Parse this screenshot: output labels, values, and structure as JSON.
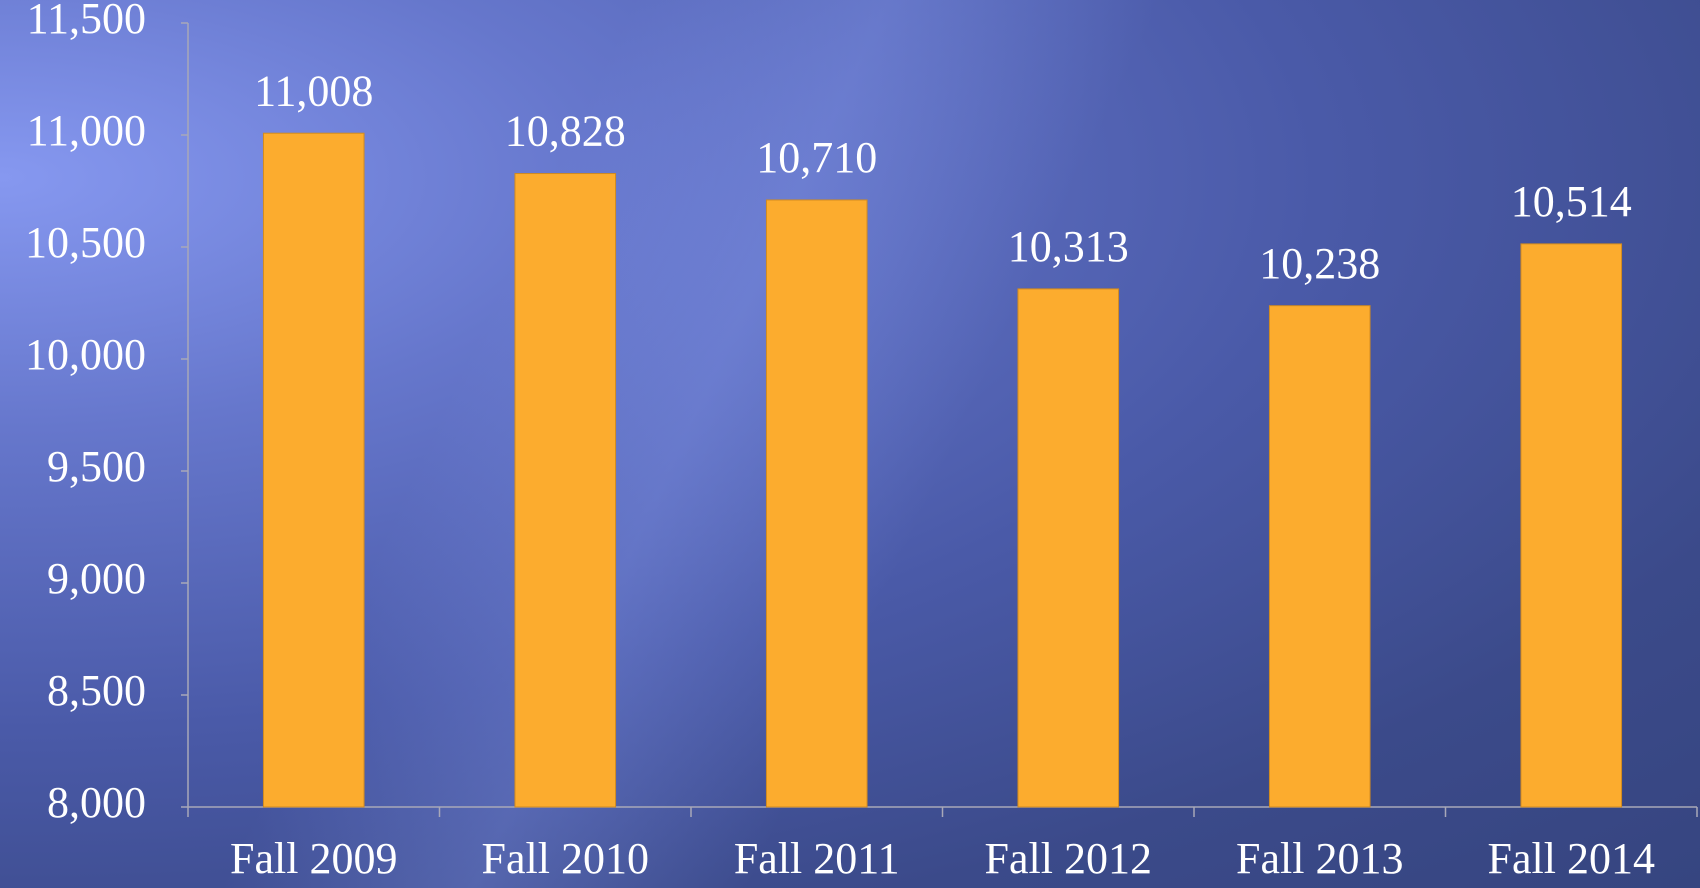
{
  "chart_data": {
    "type": "bar",
    "categories": [
      "Fall 2009",
      "Fall 2010",
      "Fall 2011",
      "Fall 2012",
      "Fall 2013",
      "Fall 2014"
    ],
    "values": [
      11008,
      10828,
      10710,
      10313,
      10238,
      10514
    ],
    "value_labels": [
      "11,008",
      "10,828",
      "10,710",
      "10,313",
      "10,238",
      "10,514"
    ],
    "color": "#fcac2e",
    "ylim": [
      8000,
      11500
    ],
    "yticks": [
      {
        "value": 8000,
        "label": "8,000"
      },
      {
        "value": 8500,
        "label": "8,500"
      },
      {
        "value": 9000,
        "label": "9,000"
      },
      {
        "value": 9500,
        "label": "9,500"
      },
      {
        "value": 10000,
        "label": "10,000"
      },
      {
        "value": 10500,
        "label": "10,500"
      },
      {
        "value": 11000,
        "label": "11,000"
      },
      {
        "value": 11500,
        "label": "11,500"
      }
    ],
    "grid": false
  }
}
